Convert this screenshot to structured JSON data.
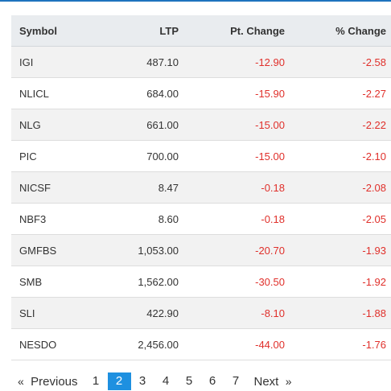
{
  "table": {
    "headers": {
      "symbol": "Symbol",
      "ltp": "LTP",
      "pt_change": "Pt. Change",
      "pct_change": "% Change"
    },
    "rows": [
      {
        "symbol": "IGI",
        "ltp": "487.10",
        "pt_change": "-12.90",
        "pct_change": "-2.58"
      },
      {
        "symbol": "NLICL",
        "ltp": "684.00",
        "pt_change": "-15.90",
        "pct_change": "-2.27"
      },
      {
        "symbol": "NLG",
        "ltp": "661.00",
        "pt_change": "-15.00",
        "pct_change": "-2.22"
      },
      {
        "symbol": "PIC",
        "ltp": "700.00",
        "pt_change": "-15.00",
        "pct_change": "-2.10"
      },
      {
        "symbol": "NICSF",
        "ltp": "8.47",
        "pt_change": "-0.18",
        "pct_change": "-2.08"
      },
      {
        "symbol": "NBF3",
        "ltp": "8.60",
        "pt_change": "-0.18",
        "pct_change": "-2.05"
      },
      {
        "symbol": "GMFBS",
        "ltp": "1,053.00",
        "pt_change": "-20.70",
        "pct_change": "-1.93"
      },
      {
        "symbol": "SMB",
        "ltp": "1,562.00",
        "pt_change": "-30.50",
        "pct_change": "-1.92"
      },
      {
        "symbol": "SLI",
        "ltp": "422.90",
        "pt_change": "-8.10",
        "pct_change": "-1.88"
      },
      {
        "symbol": "NESDO",
        "ltp": "2,456.00",
        "pt_change": "-44.00",
        "pct_change": "-1.76"
      }
    ]
  },
  "pagination": {
    "prev_arrow": "«",
    "prev_label": "Previous",
    "pages": [
      "1",
      "2",
      "3",
      "4",
      "5",
      "6",
      "7"
    ],
    "active_page": "2",
    "next_label": "Next",
    "next_arrow": "»"
  },
  "colors": {
    "accent": "#1e90e0",
    "negative": "#e0302b",
    "header_bg": "#e9ecef",
    "stripe": "#f2f2f2"
  }
}
